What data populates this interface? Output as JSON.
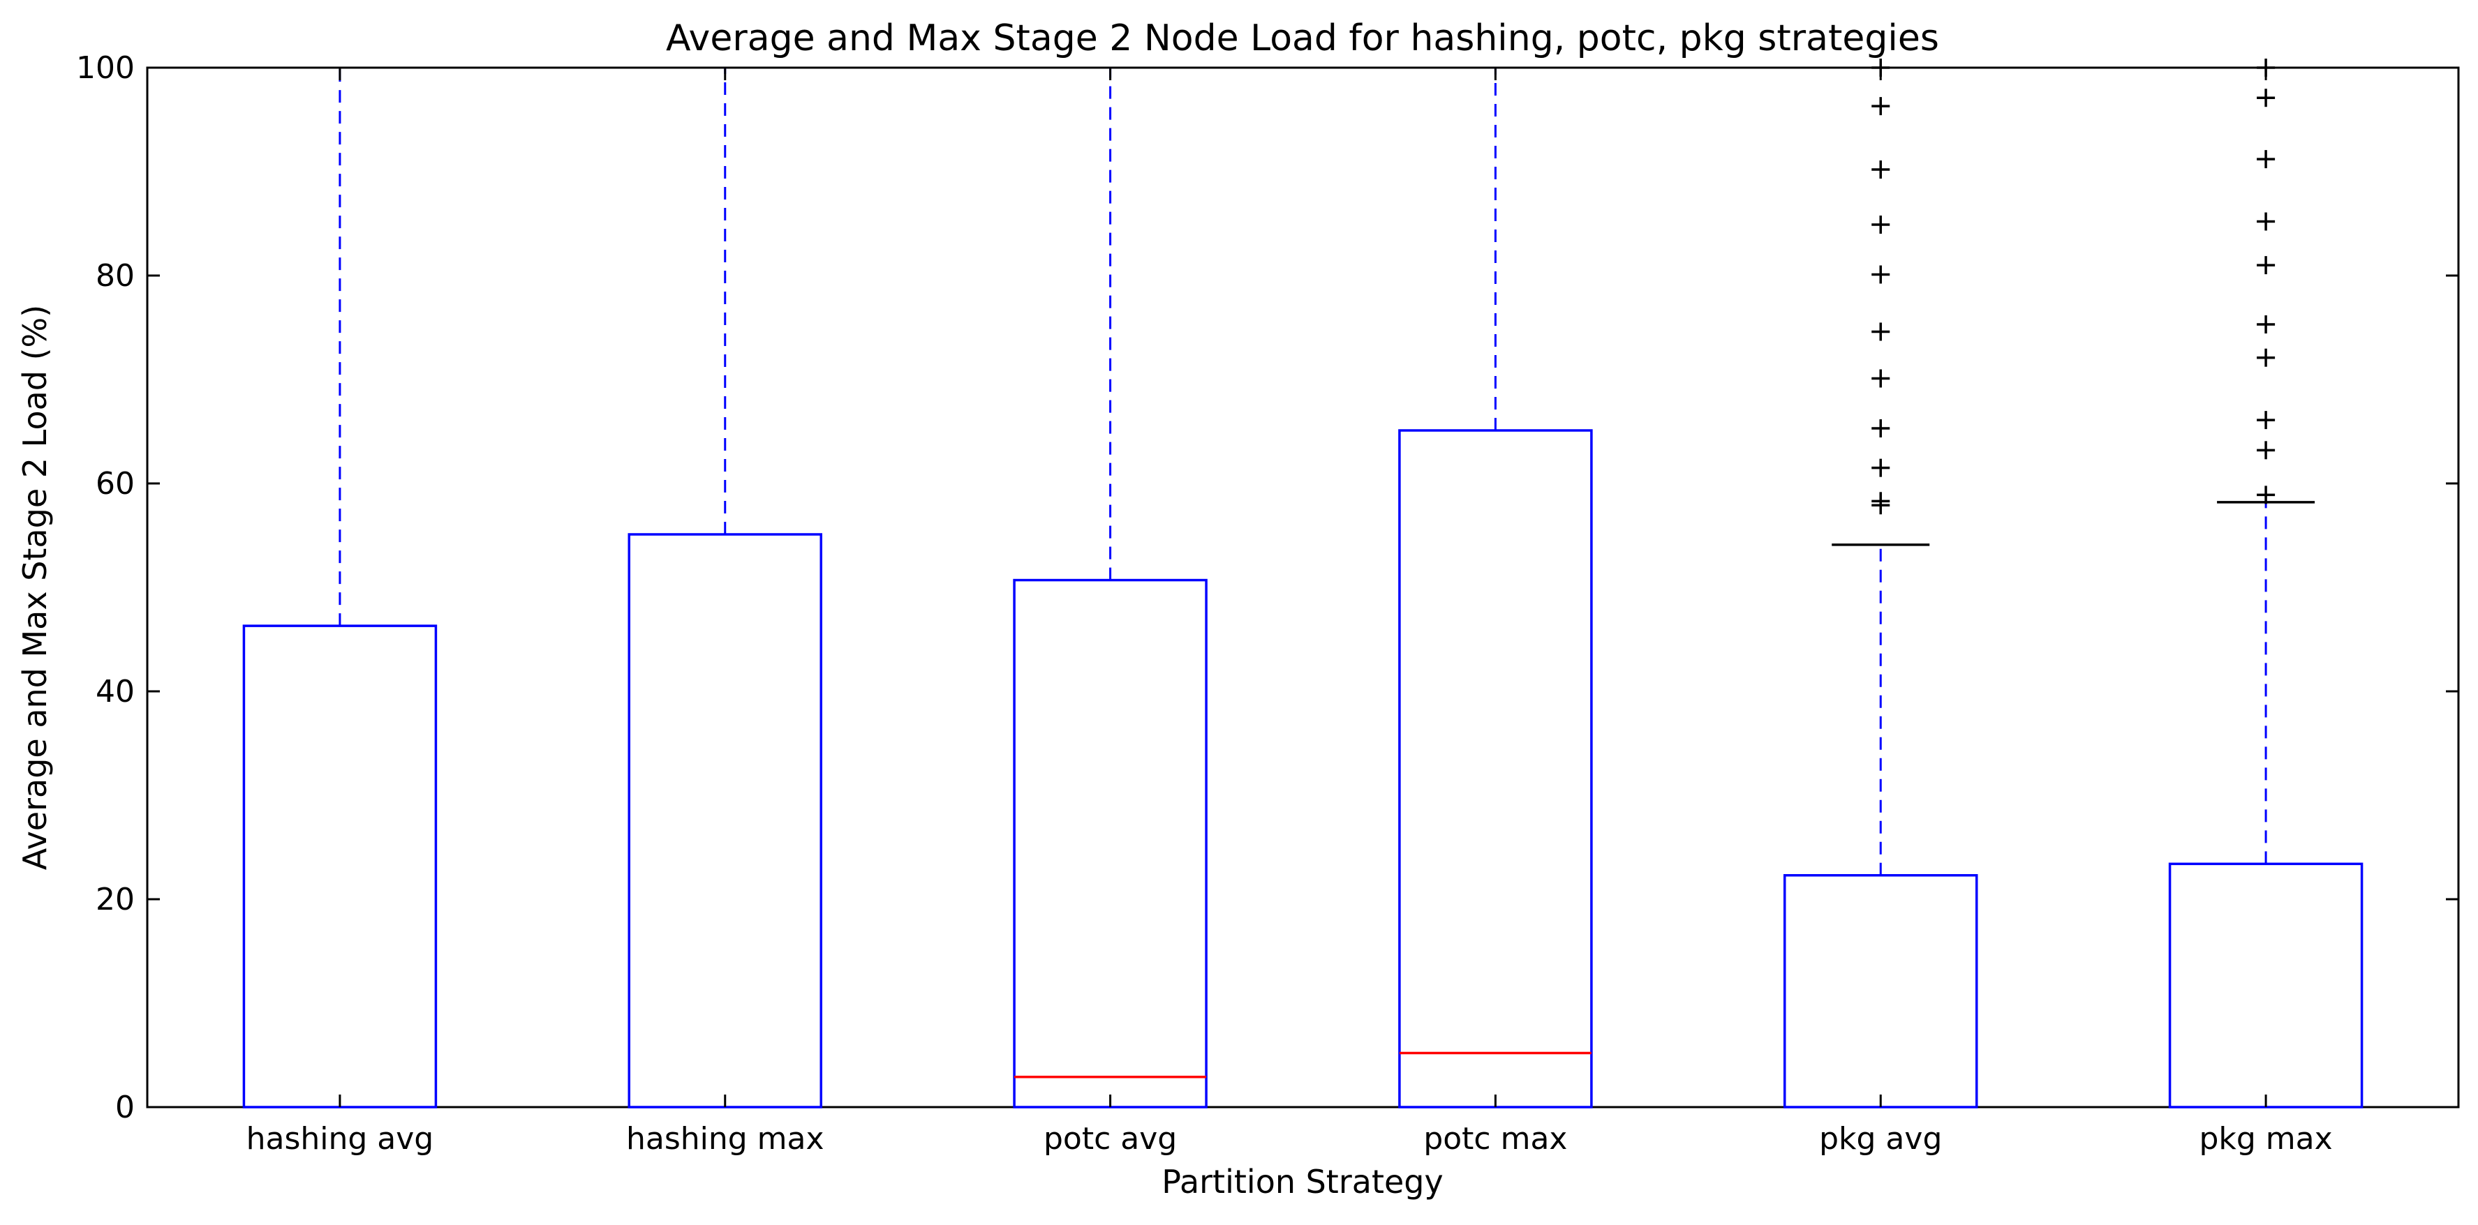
{
  "chart_data": {
    "type": "box",
    "title": "Average and Max Stage 2 Node Load for hashing, potc, pkg strategies",
    "xlabel": "Partition Strategy",
    "ylabel": "Average and Max Stage 2 Load (%)",
    "ylim": [
      0,
      100
    ],
    "yticks": [
      "0",
      "20",
      "40",
      "60",
      "80",
      "100"
    ],
    "grid": false,
    "colors": {
      "box": "#0000ff",
      "median": "#ff0000",
      "cap": "#000000",
      "flier": "#000000"
    },
    "categories": [
      "hashing avg",
      "hashing max",
      "potc avg",
      "potc max",
      "pkg avg",
      "pkg max"
    ],
    "boxes": [
      {
        "label": "hashing avg",
        "q1": 0,
        "median": 0,
        "q3": 46.3,
        "whisker_low": 0,
        "whisker_high": 100,
        "cap": null,
        "fliers": []
      },
      {
        "label": "hashing max",
        "q1": 0,
        "median": 0,
        "q3": 55.1,
        "whisker_low": 0,
        "whisker_high": 100,
        "cap": null,
        "fliers": []
      },
      {
        "label": "potc avg",
        "q1": 0,
        "median": 2.9,
        "q3": 50.7,
        "whisker_low": 0,
        "whisker_high": 100,
        "cap": null,
        "fliers": []
      },
      {
        "label": "potc max",
        "q1": 0,
        "median": 5.2,
        "q3": 65.1,
        "whisker_low": 0,
        "whisker_high": 100,
        "cap": null,
        "fliers": []
      },
      {
        "label": "pkg avg",
        "q1": 0,
        "median": 0,
        "q3": 22.3,
        "whisker_low": 0,
        "whisker_high": 54.1,
        "cap": 54.1,
        "fliers": [
          57.9,
          58.3,
          61.5,
          65.3,
          70.1,
          74.6,
          80.1,
          84.9,
          90.2,
          96.3,
          100
        ]
      },
      {
        "label": "pkg max",
        "q1": 0,
        "median": 0,
        "q3": 23.4,
        "whisker_low": 0,
        "whisker_high": 58.2,
        "cap": 58.2,
        "fliers": [
          58.9,
          63.2,
          66.1,
          72.1,
          75.3,
          81,
          85.2,
          91.2,
          97.1,
          100
        ]
      }
    ]
  }
}
